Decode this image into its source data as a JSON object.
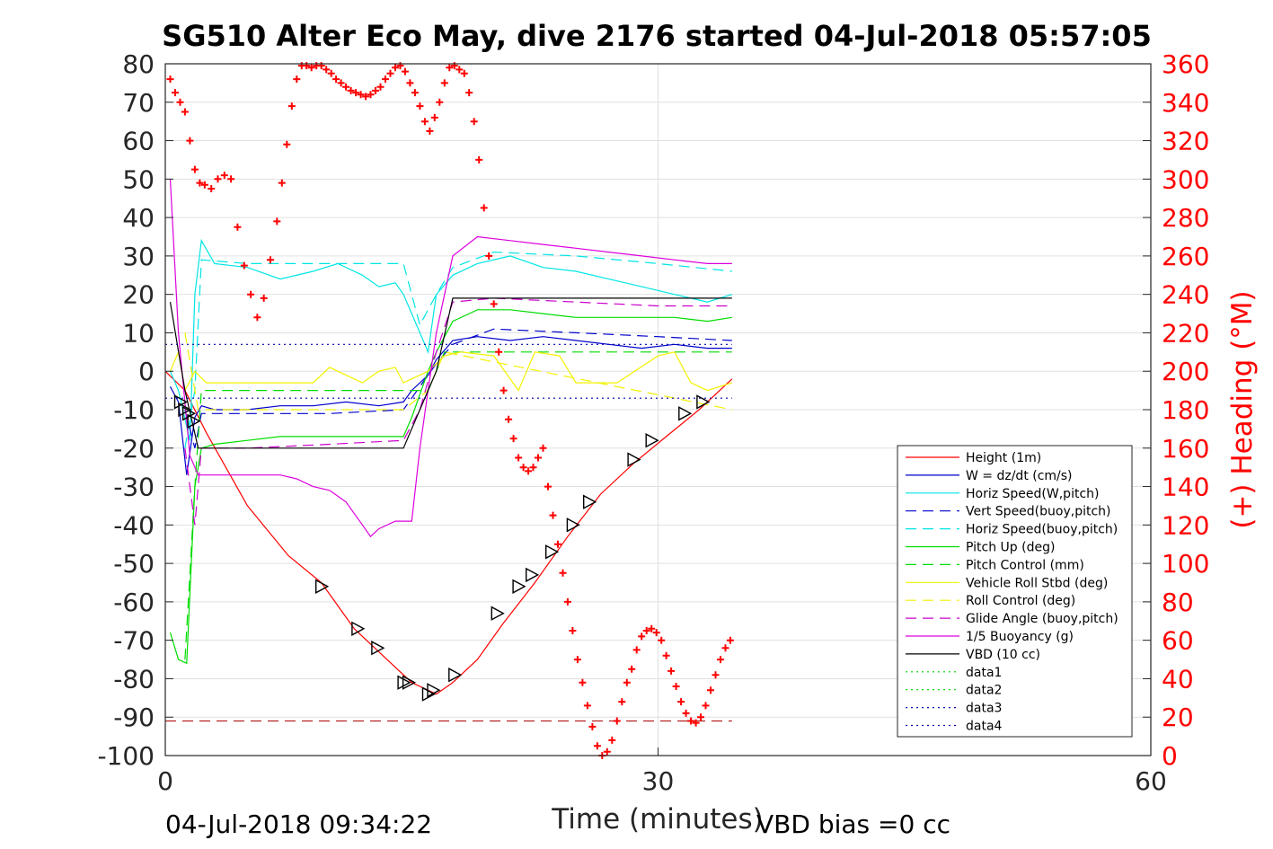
{
  "title": "SG510 Alter Eco May, dive 2176 started 04-Jul-2018 05:57:05",
  "footer": {
    "left": "04-Jul-2018 09:34:22",
    "right": "VBD bias =0 cc"
  },
  "chart_data": {
    "type": "line",
    "xlabel": "Time (minutes)",
    "ylabel": "",
    "y2label": "(+) Heading (°M)",
    "xlim": [
      0,
      60
    ],
    "ylim": [
      -100,
      80
    ],
    "y2lim": [
      0,
      360
    ],
    "xticks": [
      "0",
      "30",
      "60"
    ],
    "yticks": [
      "80",
      "70",
      "60",
      "50",
      "40",
      "30",
      "20",
      "10",
      "0",
      "-10",
      "-20",
      "-30",
      "-40",
      "-50",
      "-60",
      "-70",
      "-80",
      "-90",
      "-100"
    ],
    "y2ticks": [
      "360",
      "340",
      "320",
      "300",
      "280",
      "260",
      "240",
      "220",
      "200",
      "180",
      "160",
      "140",
      "120",
      "100",
      "80",
      "60",
      "40",
      "20",
      "0"
    ],
    "grid": "major x and y",
    "legend_position": "lower-right",
    "colors": {
      "height": "#ff0000",
      "w": "#0000cc",
      "horiz": "#00e5e5",
      "pitch": "#00dd00",
      "roll": "#f2f200",
      "glide": "#cc00cc",
      "buoy": "#dd00dd",
      "vbd": "#000000",
      "data12": "#00cc00",
      "data34": "#0000aa",
      "heading": "#ff0000"
    },
    "series": [
      {
        "name": "Height (1m)",
        "key": "height",
        "style": "solid",
        "color": "#ff0000",
        "x": [
          0,
          1.2,
          2.5,
          5,
          7.5,
          9.5,
          11.5,
          13.5,
          15,
          16,
          16.5,
          17.5,
          19,
          20.5,
          22.5,
          24.5,
          26.5,
          28.5,
          30.5,
          32.5,
          34.5
        ],
        "y": [
          0,
          -5,
          -16,
          -35,
          -48,
          -55,
          -67,
          -75,
          -81,
          -83,
          -84,
          -81,
          -75,
          -66,
          -55,
          -43,
          -32,
          -24,
          -17,
          -10,
          -2
        ]
      },
      {
        "name": "W = dz/dt (cm/s)",
        "key": "w",
        "style": "solid",
        "color": "#0000cc",
        "x": [
          0.3,
          0.8,
          1.3,
          1.8,
          2.2,
          3,
          5,
          7,
          9,
          11,
          13,
          14.5,
          15,
          16,
          16.5,
          17.5,
          19,
          21,
          23,
          25,
          27,
          29,
          31,
          33,
          34.5
        ],
        "y": [
          -4,
          -8,
          -27,
          -12,
          -9,
          -10,
          -10,
          -9,
          -9,
          -8,
          -9,
          -8,
          -5,
          -1,
          3,
          8,
          9,
          8,
          9,
          8,
          7,
          6,
          7,
          6,
          6
        ]
      },
      {
        "name": "Horiz Speed(W,pitch)",
        "key": "horiz",
        "style": "solid",
        "color": "#00e5e5",
        "x": [
          0.3,
          0.8,
          1.5,
          1.8,
          2.2,
          3,
          5,
          7,
          9,
          10.5,
          12,
          13,
          14,
          14.5,
          15.5,
          16,
          16.5,
          17.5,
          19,
          21,
          23,
          25,
          27,
          29,
          31,
          33,
          34.5
        ],
        "y": [
          0,
          -5,
          -18,
          20,
          34,
          28,
          27,
          24,
          26,
          28,
          25,
          22,
          23,
          20,
          10,
          5,
          20,
          25,
          28,
          30,
          27,
          26,
          24,
          22,
          20,
          18,
          20
        ]
      },
      {
        "name": "Vert Speed(buoy,pitch)",
        "key": "vspeed",
        "style": "dashed",
        "color": "#0000cc",
        "x": [
          1.2,
          1.8,
          2.2,
          5,
          10,
          14.5,
          15.5,
          16.5,
          17.5,
          20,
          25,
          30,
          34.5
        ],
        "y": [
          -10,
          -20,
          -11,
          -11,
          -11,
          -10,
          -4,
          2,
          7,
          11,
          10,
          9,
          8
        ]
      },
      {
        "name": "Horiz Speed(buoy,pitch)",
        "key": "hspeed",
        "style": "dashed",
        "color": "#00e5e5",
        "x": [
          1.2,
          1.8,
          2.2,
          5,
          10,
          14.5,
          15.5,
          16.5,
          17.5,
          20,
          25,
          30,
          34.5
        ],
        "y": [
          -20,
          -5,
          29,
          28,
          28,
          28,
          12,
          20,
          27,
          31,
          30,
          28,
          26
        ]
      },
      {
        "name": "Pitch Up (deg)",
        "key": "pitch",
        "style": "solid",
        "color": "#00dd00",
        "x": [
          0.3,
          0.8,
          1.3,
          1.8,
          2.2,
          3,
          5,
          7,
          9,
          11,
          13,
          14.5,
          15,
          16,
          16.5,
          17.5,
          19,
          21,
          23,
          25,
          27,
          29,
          31,
          33,
          34.5
        ],
        "y": [
          -68,
          -75,
          -76,
          -30,
          -20,
          -19,
          -18,
          -17,
          -17,
          -17,
          -17,
          -17,
          -12,
          0,
          5,
          13,
          16,
          16,
          15,
          14,
          14,
          14,
          14,
          13,
          14
        ]
      },
      {
        "name": "Pitch Control (mm)",
        "key": "pitchctl",
        "style": "dashed",
        "color": "#00dd00",
        "x": [
          1.2,
          1.8,
          2.2,
          14.5,
          16,
          17,
          34.5
        ],
        "y": [
          -75,
          -30,
          -5,
          -5,
          -5,
          5,
          5
        ]
      },
      {
        "name": "Vehicle Roll Stbd (deg)",
        "key": "roll",
        "style": "solid",
        "color": "#f2f200",
        "x": [
          0.3,
          0.8,
          1.2,
          1.8,
          2.5,
          5,
          9,
          10,
          12,
          13,
          14,
          14.5,
          16,
          17,
          18,
          20,
          21.5,
          22.5,
          24,
          25,
          27.5,
          30,
          31,
          32,
          33,
          34.5
        ],
        "y": [
          0,
          5,
          -5,
          0,
          -3,
          -3,
          -3,
          1,
          -3,
          0,
          1,
          -3,
          0,
          4,
          5,
          4,
          -5,
          5,
          4,
          -3,
          -3,
          4,
          5,
          -3,
          -5,
          -3
        ]
      },
      {
        "name": "Roll Control (deg)",
        "key": "rollctl",
        "style": "dashed",
        "color": "#f2f200",
        "x": [
          1.2,
          2,
          2.5,
          14.5,
          16,
          17,
          34.5
        ],
        "y": [
          10,
          -10,
          -10,
          -10,
          -5,
          5,
          -10
        ]
      },
      {
        "name": "Glide Angle (buoy,pitch)",
        "key": "glide",
        "style": "dashed",
        "color": "#cc00cc",
        "x": [
          1.2,
          1.8,
          2.2,
          5,
          10,
          14.5,
          15.5,
          16.5,
          17.5,
          20,
          25,
          30,
          34.5
        ],
        "y": [
          -20,
          -40,
          -20,
          -20,
          -19,
          -18,
          -10,
          5,
          18,
          19,
          18,
          17,
          17
        ]
      },
      {
        "name": "1/5 Buoyancy (g)",
        "key": "buoy",
        "style": "solid",
        "color": "#dd00dd",
        "x": [
          0.3,
          0.8,
          1.5,
          2,
          3,
          5,
          7,
          8,
          9,
          10,
          11,
          12,
          12.5,
          13,
          14,
          15,
          15.5,
          16,
          16.5,
          17.5,
          19,
          21,
          23,
          25,
          27,
          29,
          31,
          33,
          34.5
        ],
        "y": [
          50,
          10,
          -22,
          -27,
          -27,
          -27,
          -27,
          -28,
          -30,
          -31,
          -34,
          -40,
          -43,
          -41,
          -39,
          -39,
          -20,
          -5,
          10,
          30,
          35,
          34,
          33,
          32,
          31,
          30,
          29,
          28,
          28
        ]
      },
      {
        "name": "VBD (10 cc)",
        "key": "vbd",
        "style": "solid",
        "color": "#000000",
        "x": [
          0.3,
          1.2,
          2,
          14.5,
          15.5,
          16.5,
          17.5,
          34.5
        ],
        "y": [
          18,
          -5,
          -20,
          -20,
          -10,
          0,
          19,
          19
        ]
      },
      {
        "name": "data1",
        "key": "data1",
        "style": "dotted",
        "color": "#00cc00",
        "x": [],
        "y": []
      },
      {
        "name": "data2",
        "key": "data2",
        "style": "dotted",
        "color": "#00cc00",
        "x": [],
        "y": []
      },
      {
        "name": "data3",
        "key": "data3",
        "style": "dotted",
        "color": "#0000aa",
        "x": [
          0,
          34.5
        ],
        "y": [
          7,
          7
        ]
      },
      {
        "name": "data4",
        "key": "data4",
        "style": "dotted",
        "color": "#0000aa",
        "x": [
          0,
          34.5
        ],
        "y": [
          -7,
          -7
        ]
      }
    ],
    "reference_line": {
      "y": -91,
      "x": [
        0,
        34.5
      ],
      "color": "#aa0000",
      "style": "dashed"
    },
    "markers": {
      "shape": "triangle",
      "x": [
        0.9,
        1.15,
        1.4,
        1.7,
        9.5,
        11.7,
        12.9,
        14.5,
        14.8,
        16,
        16.3,
        17.6,
        20.2,
        21.5,
        22.3,
        23.5,
        24.8,
        25.8,
        28.5,
        29.6,
        31.6,
        32.7
      ],
      "y": [
        -8,
        -10,
        -11,
        -13,
        -56,
        -67,
        -72,
        -81,
        -81,
        -84,
        -83,
        -79,
        -63,
        -56,
        -53,
        -47,
        -40,
        -34,
        -23,
        -18,
        -11,
        -8
      ]
    },
    "heading": {
      "name": "Heading",
      "axis": "right",
      "marker": "+",
      "color": "#ff0000",
      "x": [
        0.3,
        0.6,
        0.9,
        1.2,
        1.5,
        1.8,
        2.1,
        2.4,
        2.8,
        3.2,
        3.6,
        4,
        4.4,
        4.8,
        5.2,
        5.6,
        6,
        6.4,
        6.8,
        7.1,
        7.4,
        7.7,
        8,
        8.3,
        8.6,
        8.9,
        9.2,
        9.5,
        9.8,
        10.1,
        10.4,
        10.7,
        11,
        11.3,
        11.6,
        11.9,
        12.2,
        12.5,
        12.8,
        13.1,
        13.4,
        13.7,
        14,
        14.3,
        14.6,
        14.9,
        15.2,
        15.5,
        15.8,
        16.1,
        16.4,
        16.7,
        17,
        17.3,
        17.6,
        17.9,
        18.2,
        18.5,
        18.8,
        19.1,
        19.4,
        19.7,
        20,
        20.3,
        20.6,
        20.9,
        21.2,
        21.5,
        21.8,
        22.1,
        22.4,
        22.7,
        23,
        23.3,
        23.6,
        23.9,
        24.2,
        24.5,
        24.8,
        25.1,
        25.4,
        25.7,
        26,
        26.3,
        26.6,
        26.9,
        27.2,
        27.5,
        27.8,
        28.1,
        28.4,
        28.7,
        29,
        29.3,
        29.6,
        29.9,
        30.2,
        30.5,
        30.8,
        31.1,
        31.4,
        31.7,
        32,
        32.3,
        32.6,
        32.9,
        33.2,
        33.5,
        33.8,
        34.1,
        34.4
      ],
      "y": [
        352,
        345,
        340,
        335,
        320,
        305,
        298,
        297,
        295,
        300,
        302,
        300,
        275,
        255,
        240,
        228,
        238,
        258,
        278,
        298,
        318,
        338,
        352,
        359,
        359,
        358,
        359,
        359,
        357,
        355,
        352,
        350,
        348,
        346,
        345,
        344,
        343,
        344,
        346,
        348,
        352,
        355,
        358,
        359,
        356,
        350,
        345,
        338,
        330,
        325,
        332,
        340,
        350,
        358,
        359,
        357,
        355,
        345,
        330,
        310,
        285,
        260,
        235,
        210,
        190,
        175,
        165,
        155,
        150,
        148,
        150,
        155,
        160,
        140,
        125,
        110,
        95,
        80,
        65,
        50,
        38,
        26,
        15,
        5,
        0,
        2,
        8,
        18,
        28,
        38,
        45,
        55,
        62,
        65,
        66,
        64,
        60,
        52,
        44,
        36,
        28,
        22,
        18,
        17,
        20,
        26,
        34,
        42,
        50,
        56,
        60
      ]
    }
  }
}
